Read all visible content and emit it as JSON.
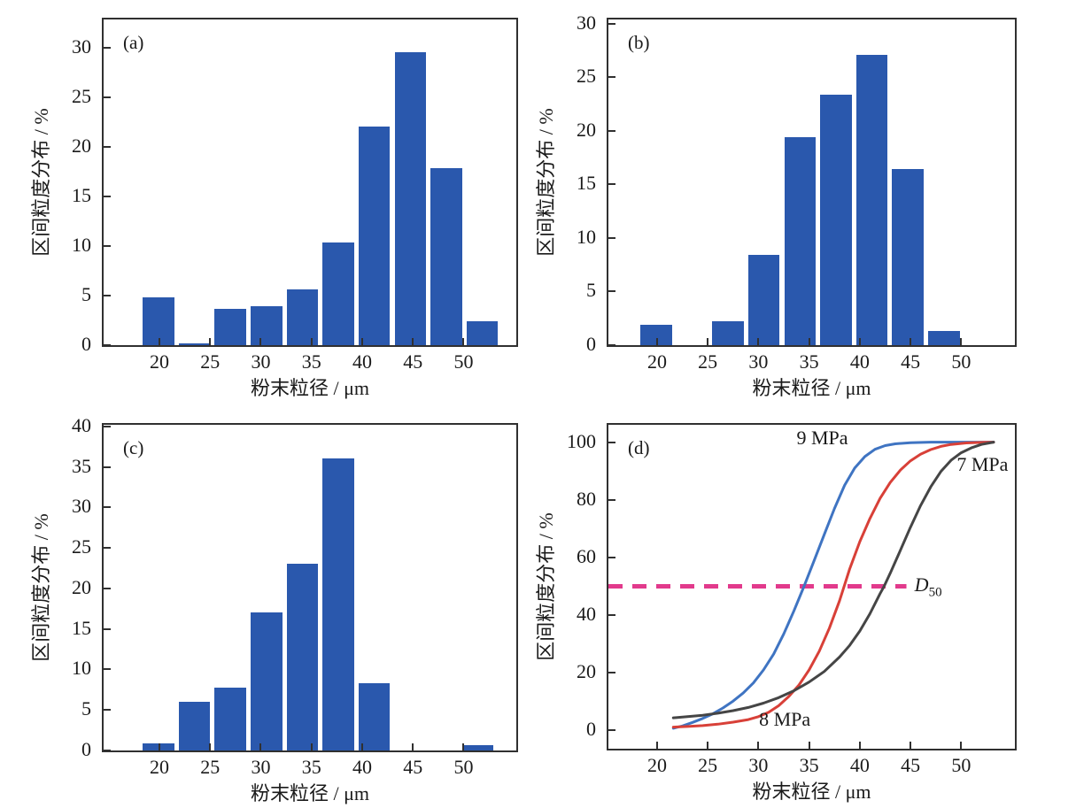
{
  "figure": {
    "background": "#ffffff",
    "axis_color": "#303030",
    "text_color": "#1a1a1a",
    "bar_color": "#2a58ad",
    "xlabel": "粉末粒径 / μm",
    "ylabel": "区间粒度分布 / %"
  },
  "chart_data": [
    {
      "id": "a",
      "type": "bar",
      "panel_label": "(a)",
      "xlabel": "粉末粒径 / μm",
      "ylabel": "区间粒度分布 / %",
      "xlim": [
        14.5,
        55.2
      ],
      "ylim": [
        0,
        32.9
      ],
      "xticks": [
        20,
        25,
        30,
        35,
        40,
        45,
        50
      ],
      "yticks": [
        0,
        5,
        10,
        15,
        20,
        25,
        30
      ],
      "bar_width": 3.1,
      "bar_color": "#2a58ad",
      "x": [
        19.9,
        23.45,
        27.0,
        30.55,
        34.1,
        37.65,
        41.2,
        44.75,
        48.3,
        51.85
      ],
      "values": [
        4.8,
        0.2,
        3.7,
        3.9,
        5.6,
        10.4,
        22.1,
        29.6,
        17.9,
        2.4
      ]
    },
    {
      "id": "b",
      "type": "bar",
      "panel_label": "(b)",
      "xlabel": "粉末粒径 / μm",
      "ylabel": "区间粒度分布 / %",
      "xlim": [
        15.2,
        55.3
      ],
      "ylim": [
        0,
        30.4
      ],
      "xticks": [
        20,
        25,
        30,
        35,
        40,
        45,
        50
      ],
      "yticks": [
        0,
        5,
        10,
        15,
        20,
        25,
        30
      ],
      "bar_width": 3.1,
      "bar_color": "#2a58ad",
      "x": [
        19.9,
        27.0,
        30.55,
        34.1,
        37.65,
        41.2,
        44.75,
        48.3
      ],
      "values": [
        1.9,
        2.2,
        8.4,
        19.4,
        23.4,
        27.1,
        16.4,
        1.3
      ]
    },
    {
      "id": "c",
      "type": "bar",
      "panel_label": "(c)",
      "xlabel": "粉末粒径 / μm",
      "ylabel": "区间粒度分布 / %",
      "xlim": [
        14.5,
        55.2
      ],
      "ylim": [
        0,
        40.2
      ],
      "xticks": [
        20,
        25,
        30,
        35,
        40,
        45,
        50
      ],
      "yticks": [
        0,
        5,
        10,
        15,
        20,
        25,
        30,
        35,
        40
      ],
      "bar_width": 3.1,
      "bar_color": "#2a58ad",
      "x": [
        19.9,
        23.45,
        27.0,
        30.55,
        34.1,
        37.65,
        41.2,
        51.4
      ],
      "values": [
        0.9,
        6.0,
        7.8,
        17.0,
        23.1,
        36.1,
        8.3,
        0.7
      ]
    },
    {
      "id": "d",
      "type": "line",
      "panel_label": "(d)",
      "xlabel": "粉末粒径 / μm",
      "ylabel": "区间粒度分布 / %",
      "xlim": [
        15.2,
        55.3
      ],
      "ylim": [
        -6.3,
        106
      ],
      "xticks": [
        20,
        25,
        30,
        35,
        40,
        45,
        50
      ],
      "yticks": [
        0,
        20,
        40,
        60,
        80,
        100
      ],
      "series": [
        {
          "name": "9 MPa",
          "color": "#3f74c2",
          "points": [
            [
              21.6,
              0.8
            ],
            [
              22.5,
              1.6
            ],
            [
              23.5,
              2.8
            ],
            [
              24.5,
              4.2
            ],
            [
              25.5,
              5.8
            ],
            [
              26.5,
              7.8
            ],
            [
              27.5,
              10.2
            ],
            [
              28.5,
              13
            ],
            [
              29.5,
              16.5
            ],
            [
              30.5,
              21
            ],
            [
              31.5,
              26.5
            ],
            [
              32.5,
              33.5
            ],
            [
              33.5,
              41.5
            ],
            [
              34.5,
              50
            ],
            [
              35.5,
              59
            ],
            [
              36.5,
              68
            ],
            [
              37.5,
              77
            ],
            [
              38.5,
              85
            ],
            [
              39.5,
              91
            ],
            [
              40.5,
              95
            ],
            [
              41.5,
              97.5
            ],
            [
              42.5,
              98.8
            ],
            [
              43.5,
              99.4
            ],
            [
              45,
              99.8
            ],
            [
              47,
              100
            ],
            [
              50,
              100
            ],
            [
              53.2,
              100
            ]
          ]
        },
        {
          "name": "8 MPa",
          "color": "#d84038",
          "points": [
            [
              21.6,
              1.2
            ],
            [
              23,
              1.4
            ],
            [
              24.5,
              1.7
            ],
            [
              26,
              2.2
            ],
            [
              27.5,
              2.9
            ],
            [
              29,
              3.8
            ],
            [
              30,
              4.8
            ],
            [
              31,
              6.3
            ],
            [
              32,
              8.6
            ],
            [
              33,
              11.8
            ],
            [
              34,
              15.8
            ],
            [
              35,
              21
            ],
            [
              36,
              27.5
            ],
            [
              37,
              35.5
            ],
            [
              38,
              45
            ],
            [
              39,
              56
            ],
            [
              40,
              65.5
            ],
            [
              41,
              73.5
            ],
            [
              42,
              80.5
            ],
            [
              43,
              86
            ],
            [
              44,
              90.3
            ],
            [
              45,
              93.5
            ],
            [
              46,
              95.8
            ],
            [
              47,
              97.4
            ],
            [
              48,
              98.5
            ],
            [
              49,
              99.2
            ],
            [
              50.5,
              99.7
            ],
            [
              52,
              99.9
            ],
            [
              53.2,
              100
            ]
          ]
        },
        {
          "name": "7 MPa",
          "color": "#454545",
          "points": [
            [
              21.6,
              4.4
            ],
            [
              23,
              4.8
            ],
            [
              24.5,
              5.3
            ],
            [
              26,
              6
            ],
            [
              27.5,
              6.9
            ],
            [
              29,
              8
            ],
            [
              30.5,
              9.5
            ],
            [
              32,
              11.4
            ],
            [
              33.5,
              13.8
            ],
            [
              35,
              16.8
            ],
            [
              36.5,
              20.5
            ],
            [
              38,
              25.5
            ],
            [
              39,
              29.5
            ],
            [
              40,
              34.5
            ],
            [
              41,
              40.5
            ],
            [
              42,
              47.5
            ],
            [
              42.4,
              50
            ],
            [
              43,
              54.5
            ],
            [
              44,
              62.5
            ],
            [
              45,
              70.5
            ],
            [
              46,
              78
            ],
            [
              47,
              84.5
            ],
            [
              48,
              89.8
            ],
            [
              49,
              93.7
            ],
            [
              50,
              96.3
            ],
            [
              51,
              98
            ],
            [
              52,
              99.2
            ],
            [
              53.2,
              100
            ]
          ]
        }
      ],
      "reference_line": {
        "y": 50,
        "x_start": 15.2,
        "x_end": 44.6,
        "color": "#e23a8c",
        "label": "D",
        "label_subscript": "50",
        "label_x": 45.4
      },
      "annotations": [
        {
          "text": "9 MPa",
          "x": 36.3,
          "y": 101
        },
        {
          "text": "8 MPa",
          "x": 32.6,
          "y": 3.5
        },
        {
          "text": "7 MPa",
          "x": 52.1,
          "y": 92
        }
      ],
      "d50_values_um": {
        "9 MPa": 34.5,
        "8 MPa": 38.3,
        "7 MPa": 42.4
      }
    }
  ]
}
